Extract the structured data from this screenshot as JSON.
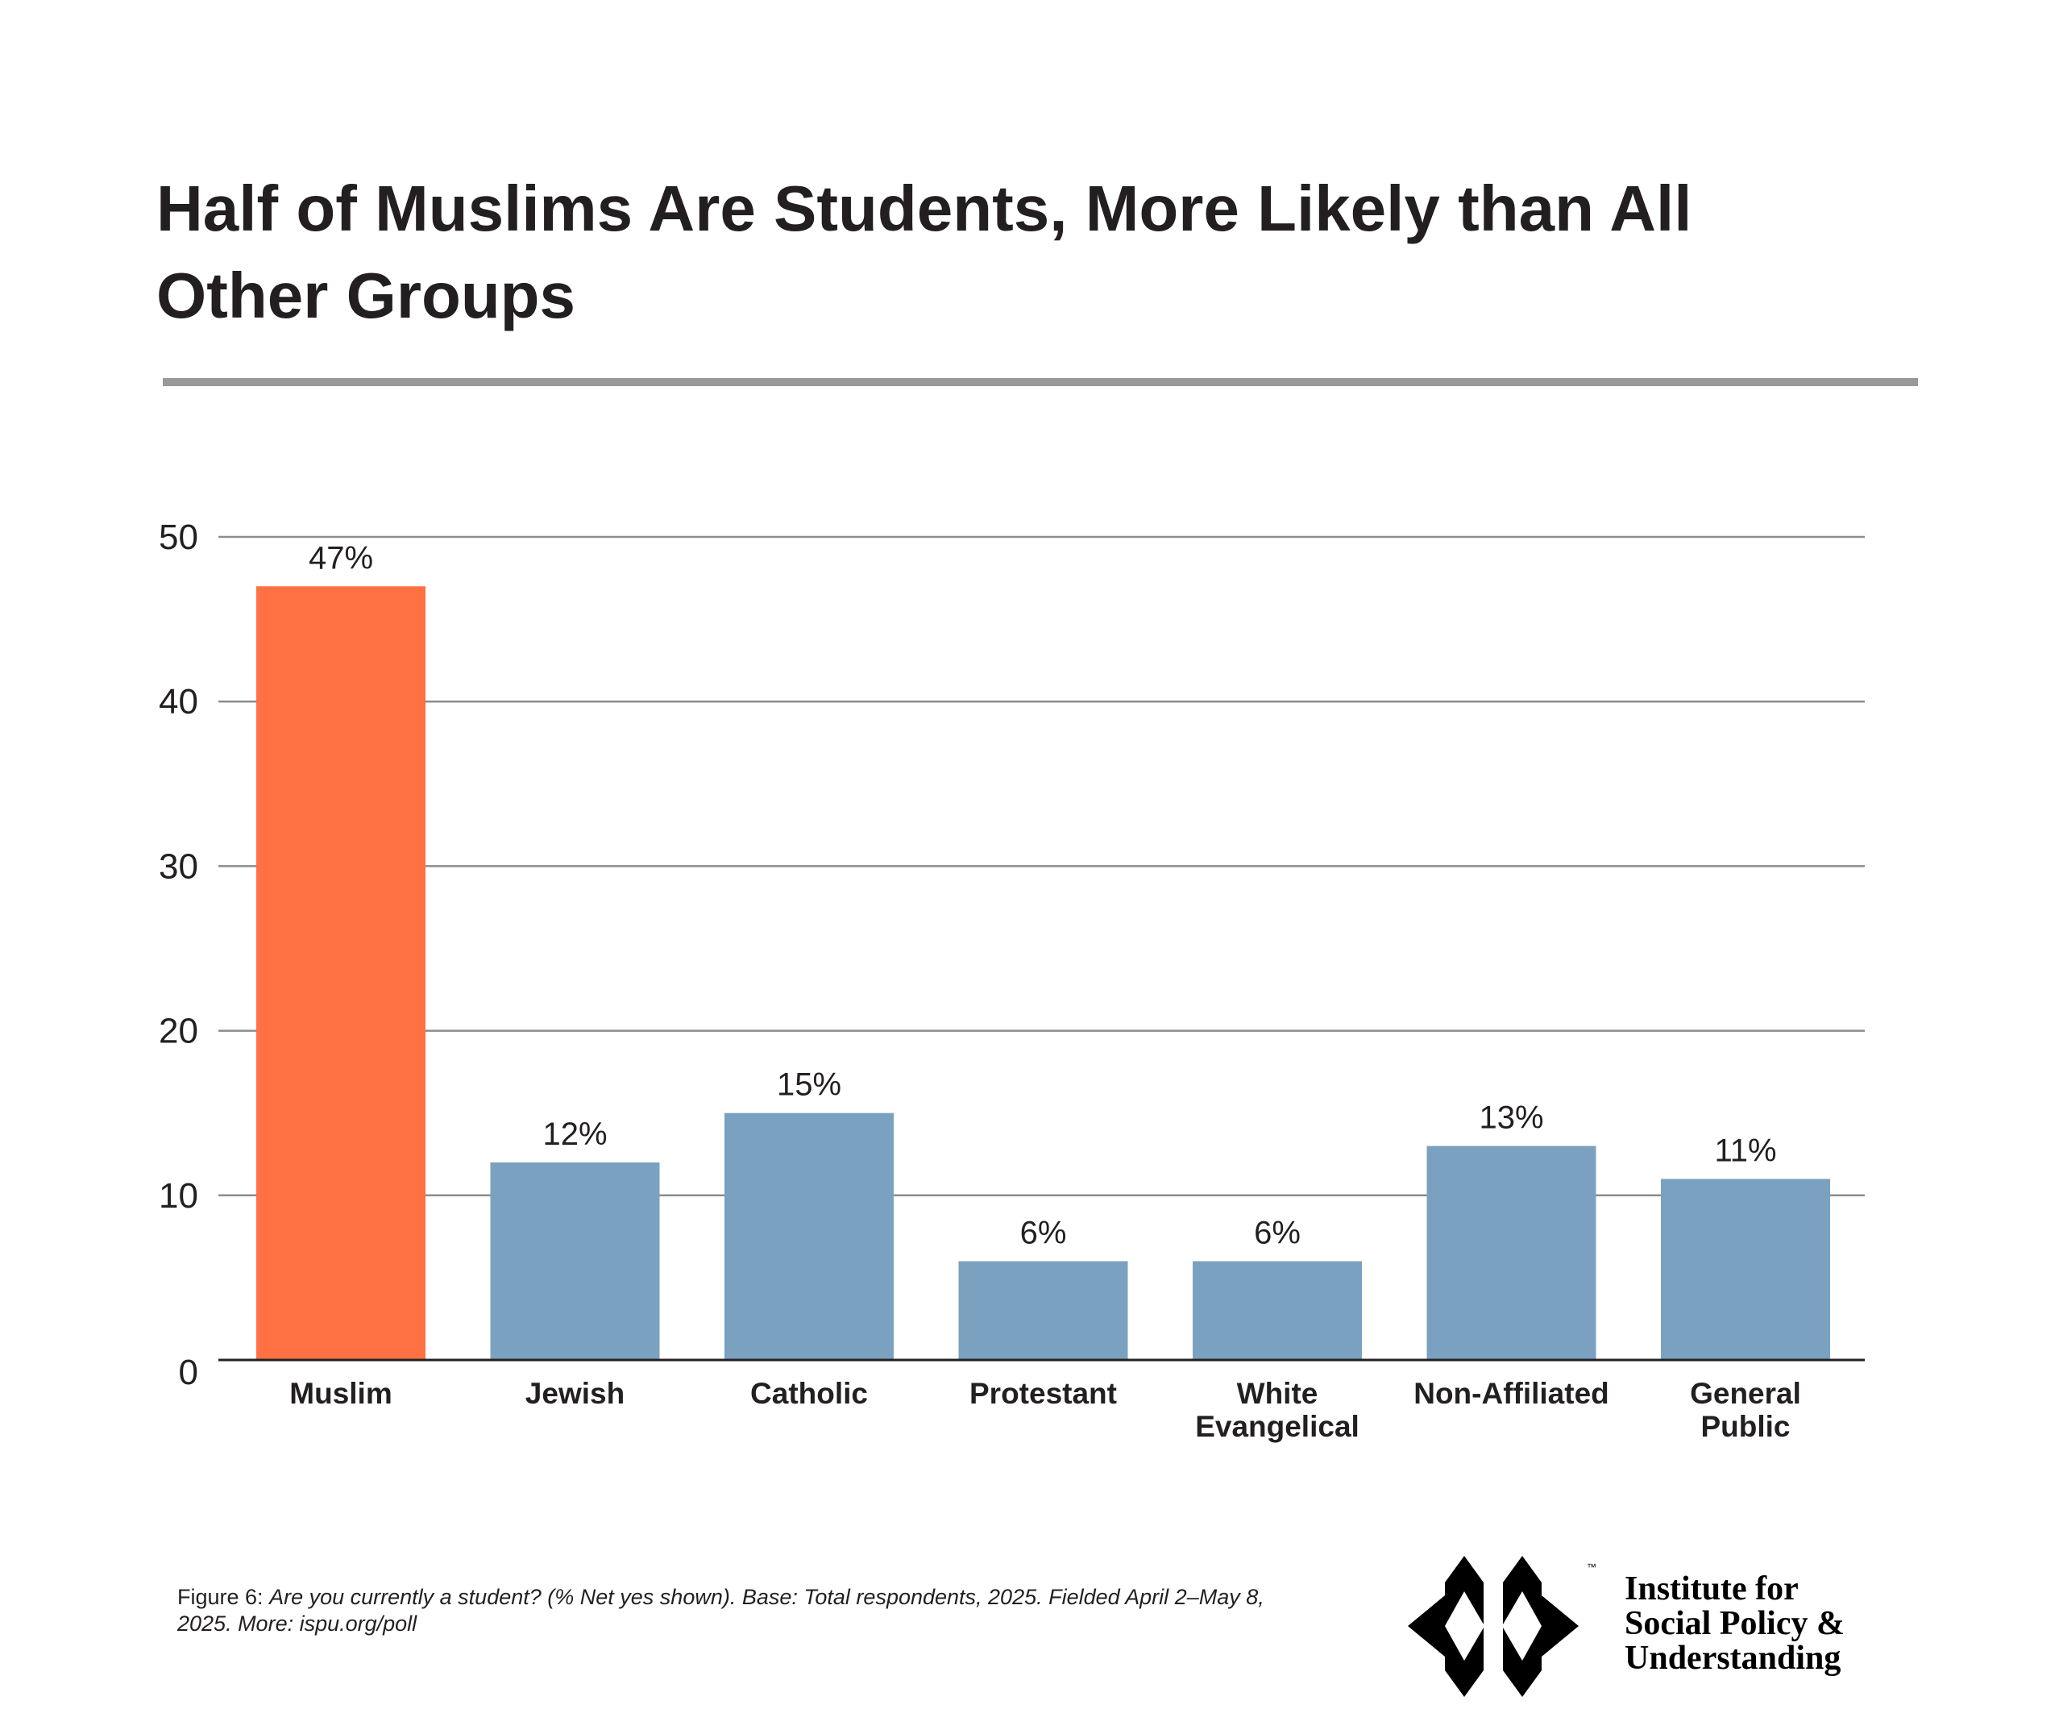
{
  "chart_data": {
    "type": "bar",
    "title": "Half of Muslims Are Students, More Likely than All Other Groups",
    "categories": [
      "Muslim",
      "Jewish",
      "Catholic",
      "Protestant",
      "White Evangelical",
      "Non-Affiliated",
      "General Public"
    ],
    "category_lines": [
      [
        "Muslim"
      ],
      [
        "Jewish"
      ],
      [
        "Catholic"
      ],
      [
        "Protestant"
      ],
      [
        "White",
        "Evangelical"
      ],
      [
        "Non-Affiliated"
      ],
      [
        "General",
        "Public"
      ]
    ],
    "values": [
      47,
      12,
      15,
      6,
      6,
      13,
      11
    ],
    "data_labels": [
      "47%",
      "12%",
      "15%",
      "6%",
      "6%",
      "13%",
      "11%"
    ],
    "colors": [
      "#FF7043",
      "#7BA1C1",
      "#7BA1C1",
      "#7BA1C1",
      "#7BA1C1",
      "#7BA1C1",
      "#7BA1C1"
    ],
    "xlabel": "",
    "ylabel": "",
    "ylim": [
      0,
      50
    ],
    "yticks": [
      0,
      10,
      20,
      30,
      40,
      50
    ],
    "grid": true,
    "legend": "none"
  },
  "title": "Half of Muslims Are Students, More Likely than All Other Groups",
  "footer": {
    "label": "Figure 6:",
    "text": "Are you currently a student? (% Net yes shown). Base: Total respondents, 2025. Fielded April 2–May 8, 2025. More: ispu.org/poll"
  },
  "logo": {
    "lines": [
      "Institute for",
      "Social Policy &",
      "Understanding"
    ],
    "trademark": "™"
  }
}
